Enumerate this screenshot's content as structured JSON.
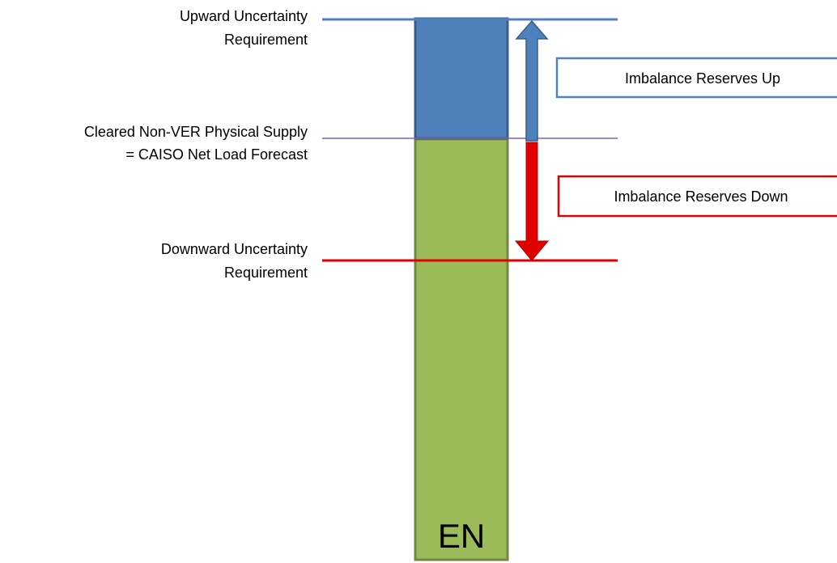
{
  "levels": [
    {
      "lines": [
        "Upward Uncertainty",
        "Requirement"
      ]
    },
    {
      "lines": [
        "Cleared Non-VER Physical Supply",
        "= CAISO Net Load Forecast"
      ]
    },
    {
      "lines": [
        "Downward Uncertainty",
        "Requirement"
      ]
    }
  ],
  "boxes": [
    {
      "label": "Imbalance Reserves Up"
    },
    {
      "label": "Imbalance Reserves Down"
    }
  ],
  "bar": {
    "label": "EN"
  }
}
